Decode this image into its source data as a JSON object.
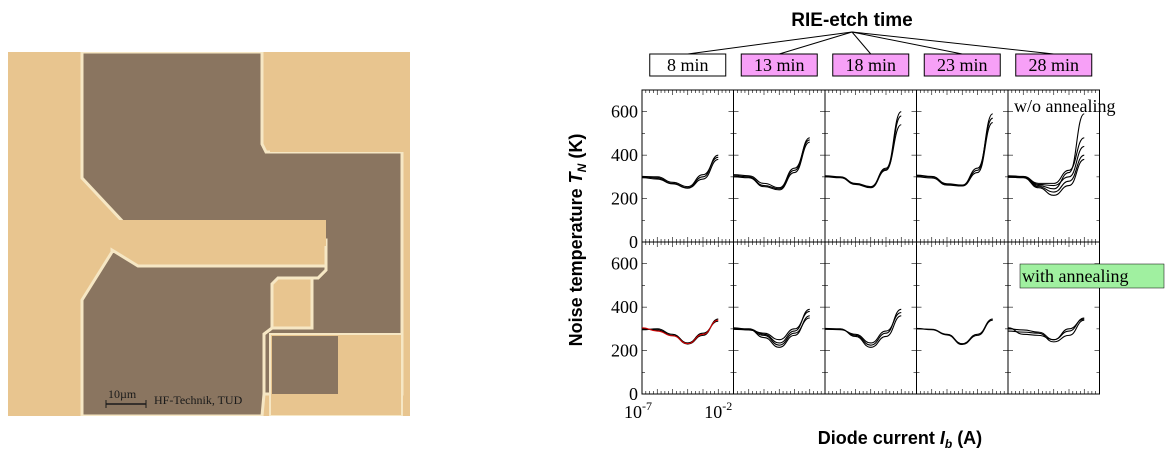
{
  "micrograph": {
    "scale_bar_label": "10µm",
    "credit": "HF-Technik, TUD",
    "colors": {
      "metal": "#e8c58f",
      "substrate": "#8a7560",
      "edge": "#f6e7c4"
    }
  },
  "chart_data": {
    "type": "line",
    "title": "RIE-etch time",
    "xlabel": "Diode current I_b (A)",
    "xlabel_parts": {
      "main": "Diode current ",
      "symbol": "I",
      "sub": "b",
      "unit": " (A)"
    },
    "ylabel": "Noise temperature T_N (K)",
    "ylabel_parts": {
      "main": "Noise temperature ",
      "symbol": "T",
      "sub": "N",
      "unit": " (K)"
    },
    "x_tick_labels": [
      {
        "base": "10",
        "exp": "-7"
      },
      {
        "base": "10",
        "exp": "-2"
      }
    ],
    "y_ticks": [
      0,
      200,
      400,
      600
    ],
    "ylim": [
      0,
      700
    ],
    "x_scale": "log",
    "xlim_exponents": [
      -7,
      -1
    ],
    "columns": [
      {
        "label": "8 min",
        "highlight": false
      },
      {
        "label": "13 min",
        "highlight": true
      },
      {
        "label": "18 min",
        "highlight": true
      },
      {
        "label": "23 min",
        "highlight": true
      },
      {
        "label": "28 min",
        "highlight": true
      }
    ],
    "rows": [
      {
        "label": "w/o annealing",
        "label_style": "plain"
      },
      {
        "label": "with annealing",
        "label_style": "green"
      }
    ],
    "x_exponents": [
      -7,
      -6,
      -5,
      -4,
      -3,
      -2,
      -1
    ],
    "panels": [
      [
        {
          "series": [
            [
              300,
              295,
              270,
              250,
              300,
              400
            ],
            [
              296,
              290,
              268,
              248,
              290,
              380
            ],
            [
              302,
              300,
              275,
              255,
              310,
              390
            ]
          ]
        },
        {
          "series": [
            [
              305,
              300,
              260,
              245,
              330,
              480
            ],
            [
              310,
              305,
              270,
              250,
              340,
              470
            ],
            [
              300,
              296,
              255,
              240,
              320,
              460
            ]
          ]
        },
        {
          "series": [
            [
              305,
              300,
              270,
              255,
              340,
              600
            ],
            [
              300,
              296,
              265,
              250,
              330,
              580
            ],
            [
              302,
              298,
              268,
              252,
              335,
              540
            ]
          ]
        },
        {
          "series": [
            [
              305,
              300,
              265,
              260,
              330,
              590
            ],
            [
              308,
              302,
              268,
              262,
              340,
              570
            ],
            [
              300,
              295,
              262,
              258,
              320,
              550
            ]
          ]
        },
        {
          "series": [
            [
              302,
              300,
              265,
              260,
              300,
              440
            ],
            [
              300,
              298,
              255,
              230,
              280,
              400
            ],
            [
              305,
              302,
              270,
              270,
              330,
              480
            ],
            [
              298,
              296,
              250,
              215,
              260,
              380
            ],
            [
              304,
              300,
              260,
              245,
              320,
              590
            ]
          ]
        }
      ],
      [
        {
          "series": [
            [
              300,
              295,
              270,
              230,
              270,
              345
            ],
            [
              296,
              300,
              275,
              235,
              280,
              335
            ],
            [
              305,
              290,
              268,
              232,
              275,
              340
            ]
          ]
        },
        {
          "series": [
            [
              300,
              300,
              275,
              235,
              290,
              390
            ],
            [
              305,
              298,
              260,
              215,
              270,
              360
            ],
            [
              298,
              295,
              280,
              250,
              300,
              380
            ],
            [
              302,
              296,
              270,
              225,
              280,
              350
            ]
          ]
        },
        {
          "series": [
            [
              300,
              298,
              270,
              225,
              280,
              390
            ],
            [
              302,
              300,
              265,
              215,
              265,
              360
            ],
            [
              298,
              296,
              275,
              235,
              290,
              375
            ]
          ]
        },
        {
          "series": [
            [
              300,
              298,
              275,
              232,
              275,
              345
            ],
            [
              302,
              296,
              272,
              228,
              270,
              340
            ]
          ]
        },
        {
          "series": [
            [
              305,
              275,
              270,
              250,
              300,
              345
            ],
            [
              300,
              295,
              285,
              250,
              290,
              350
            ],
            [
              290,
              285,
              280,
              240,
              270,
              340
            ]
          ]
        }
      ]
    ],
    "line_color": "#000000",
    "accent_color": "#d00000",
    "highlight_color": "#f7a0f7",
    "annotation_color": "#a0f0a0"
  }
}
